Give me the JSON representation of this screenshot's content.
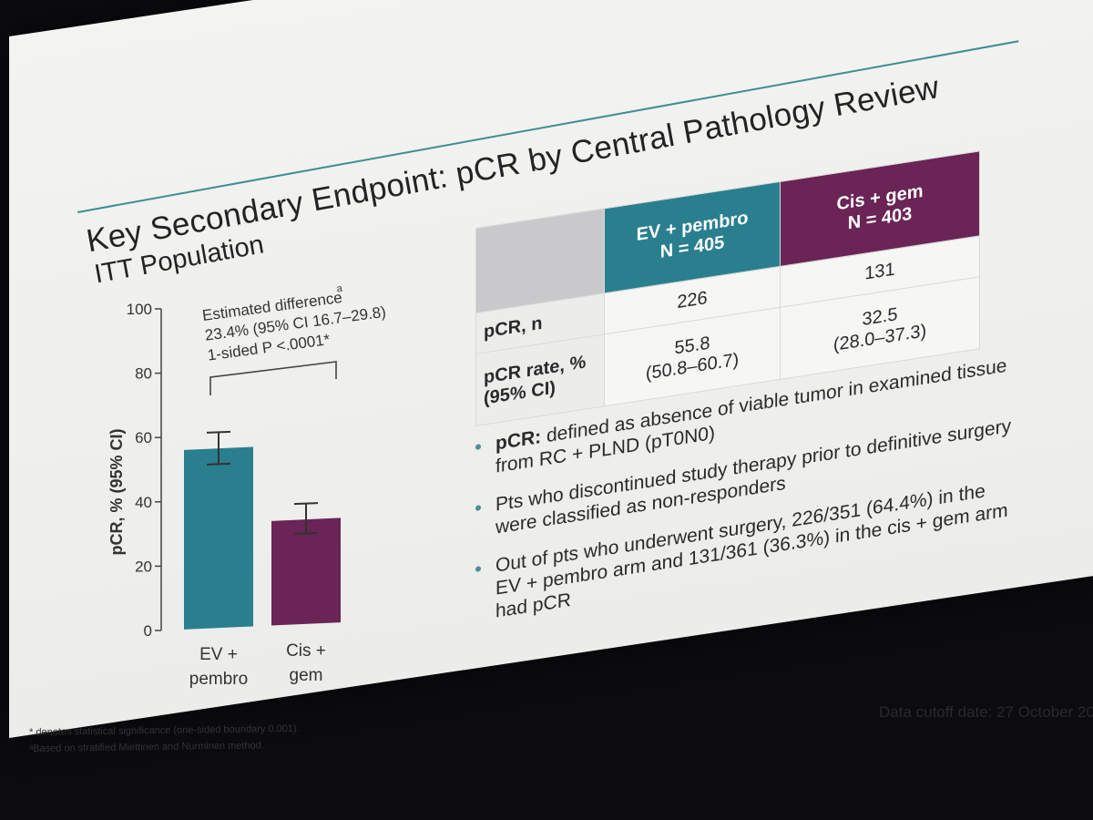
{
  "slide": {
    "title": "Key Secondary Endpoint: pCR by Central Pathology Review",
    "subtitle": "ITT Population",
    "data_cutoff": "Data cutoff date: 27 October 20",
    "footnote_1": "* denotes statistical significance (one-sided boundary 0.001).",
    "footnote_2": "ᵃBased on stratified Miettinen and Nurminen method."
  },
  "table": {
    "col1_line1": "EV + pembro",
    "col1_line2": "N = 405",
    "col2_line1": "Cis + gem",
    "col2_line2": "N = 403",
    "row1_label": "pCR, n",
    "row1_col1": "226",
    "row1_col2": "131",
    "row2_label_line1": "pCR rate, %",
    "row2_label_line2": "(95% CI)",
    "row2_col1_line1": "55.8",
    "row2_col1_line2": "(50.8–60.7)",
    "row2_col2_line1": "32.5",
    "row2_col2_line2": "(28.0–37.3)"
  },
  "bullets": [
    {
      "bold": "pCR:",
      "text": " defined as absence of viable tumor in examined tissue from RC + PLND (pT0N0)"
    },
    {
      "bold": "",
      "text": "Pts who discontinued study therapy prior to definitive surgery were classified as non-responders"
    },
    {
      "bold": "",
      "text": "Out of pts who underwent surgery, 226/351 (64.4%) in the EV + pembro arm and 131/361 (36.3%) in the cis + gem arm had pCR"
    }
  ],
  "colors": {
    "ev_pembro": "#2a7f8f",
    "cis_gem": "#6a2456",
    "rule": "#3f8c95"
  },
  "chart_data": {
    "type": "bar",
    "ylabel": "pCR, % (95% CI)",
    "ylim": [
      0,
      100
    ],
    "yticks": [
      0,
      20,
      40,
      60,
      80,
      100
    ],
    "categories": [
      {
        "line1": "EV +",
        "line2": "pembro"
      },
      {
        "line1": "Cis +",
        "line2": "gem"
      }
    ],
    "values": [
      55.8,
      32.5
    ],
    "ci_low": [
      50.8,
      28.0
    ],
    "ci_high": [
      60.7,
      37.3
    ],
    "annotation": {
      "line1": "Estimated difference",
      "sup": "a",
      "line2": "23.4% (95% CI 16.7–29.8)",
      "line3": "1-sided P <.0001*"
    }
  }
}
